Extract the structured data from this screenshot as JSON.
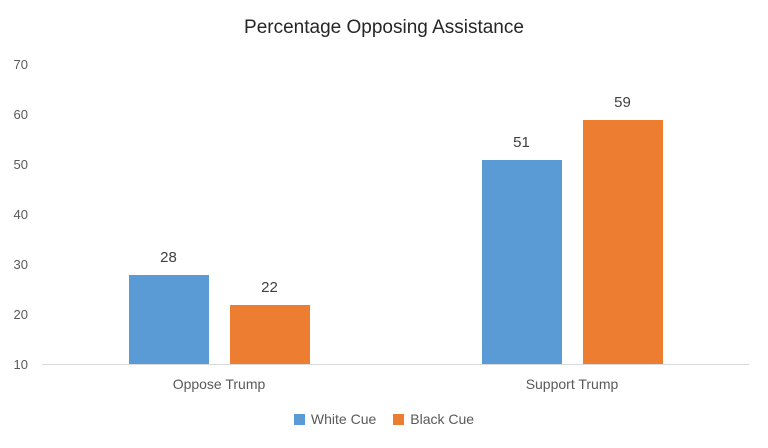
{
  "chart_data": {
    "type": "bar",
    "title": "Percentage Opposing Assistance",
    "categories": [
      "Oppose Trump",
      "Support Trump"
    ],
    "series": [
      {
        "name": "White Cue",
        "color": "#5B9BD5",
        "values": [
          28,
          51
        ]
      },
      {
        "name": "Black Cue",
        "color": "#ED7D31",
        "values": [
          22,
          59
        ]
      }
    ],
    "xlabel": "",
    "ylabel": "",
    "ylim": [
      10,
      70
    ],
    "yticks": [
      70,
      60,
      50,
      40,
      30,
      20,
      10
    ],
    "grid": false,
    "data_labels": true,
    "legend_position": "bottom",
    "colors": {
      "axis_line": "#d9d9d9",
      "tick_text": "#595959",
      "category_text": "#595959",
      "legend_text": "#595959",
      "value_label_text": "#404040",
      "title_text": "#262626",
      "background": "#ffffff"
    }
  }
}
